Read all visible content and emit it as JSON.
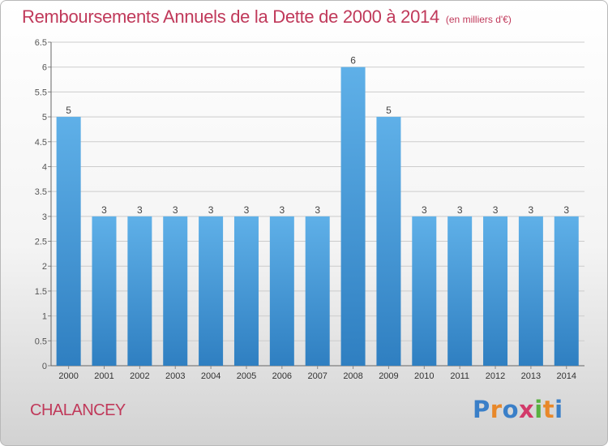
{
  "title": "Remboursements Annuels de la Dette de 2000 à 2014",
  "unit": "(en milliers d'€)",
  "commune": "CHALANCEY",
  "brand": {
    "text": "Proxiti",
    "letters": [
      {
        "ch": "P",
        "color": "#3a7fc8"
      },
      {
        "ch": "r",
        "color": "#e8882a"
      },
      {
        "ch": "o",
        "color": "#3a7fc8"
      },
      {
        "ch": "x",
        "color": "#d23a6a"
      },
      {
        "ch": "i",
        "color": "#58b040"
      },
      {
        "ch": "t",
        "color": "#e8882a"
      },
      {
        "ch": "i",
        "color": "#3a7fc8"
      }
    ]
  },
  "colors": {
    "title": "#c0395a",
    "bar_top": "#5fb0e8",
    "bar_bottom": "#2f7fc1",
    "grid": "#cccccc"
  },
  "chart_data": {
    "type": "bar",
    "categories": [
      "2000",
      "2001",
      "2002",
      "2003",
      "2004",
      "2005",
      "2006",
      "2007",
      "2008",
      "2009",
      "2010",
      "2011",
      "2012",
      "2013",
      "2014"
    ],
    "values": [
      5,
      3,
      3,
      3,
      3,
      3,
      3,
      3,
      6,
      5,
      3,
      3,
      3,
      3,
      3
    ],
    "data_labels": [
      "5",
      "3",
      "3",
      "3",
      "3",
      "3",
      "3",
      "3",
      "6",
      "5",
      "3",
      "3",
      "3",
      "3",
      "3"
    ],
    "yticks": [
      {
        "v": 0,
        "label": "0"
      },
      {
        "v": 0.5,
        "label": "0.5"
      },
      {
        "v": 1,
        "label": "1"
      },
      {
        "v": 1.5,
        "label": "1.5"
      },
      {
        "v": 2,
        "label": "2"
      },
      {
        "v": 2.5,
        "label": "2.5"
      },
      {
        "v": 3,
        "label": "3"
      },
      {
        "v": 3.5,
        "label": "3.5"
      },
      {
        "v": 4,
        "label": "4"
      },
      {
        "v": 4.5,
        "label": "4.5"
      },
      {
        "v": 5,
        "label": "5"
      },
      {
        "v": 5.5,
        "label": "5.5"
      },
      {
        "v": 6,
        "label": "6"
      },
      {
        "v": 6.5,
        "label": "6.5"
      }
    ],
    "ylim": [
      0,
      6.5
    ],
    "grid": true
  }
}
